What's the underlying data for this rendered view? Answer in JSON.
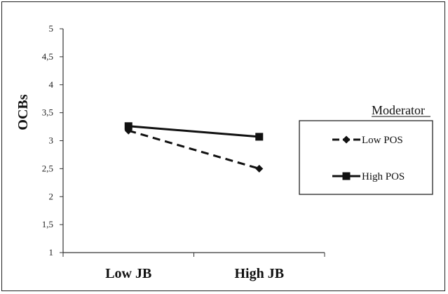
{
  "chart_data": {
    "type": "line",
    "title": "",
    "xlabel": "",
    "ylabel": "OCBs",
    "categories": [
      "Low JB",
      "High JB"
    ],
    "ylim": [
      1,
      5
    ],
    "yticks": [
      "1",
      "1,5",
      "2",
      "2,5",
      "3",
      "3,5",
      "4",
      "4,5",
      "5"
    ],
    "ytick_values": [
      1,
      1.5,
      2,
      2.5,
      3,
      3.5,
      4,
      4.5,
      5
    ],
    "legend_title": "Moderator",
    "legend_position": "right",
    "grid": false,
    "series": [
      {
        "name": "Low POS",
        "values": [
          3.18,
          2.5
        ],
        "marker": "diamond",
        "line": "dashed",
        "color": "#111111"
      },
      {
        "name": "High POS",
        "values": [
          3.26,
          3.07
        ],
        "marker": "square",
        "line": "solid",
        "color": "#111111"
      }
    ]
  }
}
